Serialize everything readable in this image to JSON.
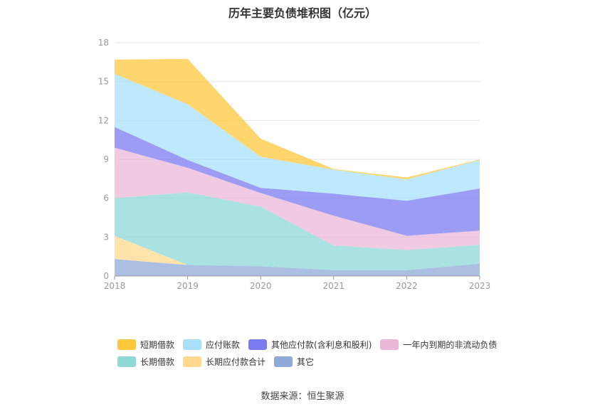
{
  "chart_data": {
    "type": "area",
    "stacked": true,
    "title": "历年主要负债堆积图（亿元）",
    "x": [
      "2018",
      "2019",
      "2020",
      "2021",
      "2022",
      "2023"
    ],
    "ylim": [
      0,
      18
    ],
    "yticks": [
      0,
      3,
      6,
      9,
      12,
      15,
      18
    ],
    "grid": true,
    "legend_position": "bottom",
    "series": [
      {
        "name": "其它",
        "color": "#8fa9d8",
        "values": [
          1.3,
          0.85,
          0.75,
          0.45,
          0.45,
          0.95
        ]
      },
      {
        "name": "长期应付款合计",
        "color": "#ffd98e",
        "values": [
          1.8,
          0.0,
          0.0,
          0.0,
          0.0,
          0.0
        ]
      },
      {
        "name": "长期借款",
        "color": "#8ed8d8",
        "values": [
          2.9,
          5.6,
          4.6,
          1.9,
          1.55,
          1.45
        ]
      },
      {
        "name": "一年内到期的非流动负债",
        "color": "#e9b8d8",
        "values": [
          3.9,
          1.9,
          1.05,
          2.3,
          1.1,
          1.1
        ]
      },
      {
        "name": "其他应付款(含利息和股利)",
        "color": "#7b7bf0",
        "values": [
          1.6,
          0.6,
          0.4,
          1.7,
          2.7,
          3.25
        ]
      },
      {
        "name": "应付账款",
        "color": "#a8e0fa",
        "values": [
          4.1,
          4.3,
          2.4,
          1.85,
          1.65,
          2.2
        ]
      },
      {
        "name": "短期借款",
        "color": "#ffc83c",
        "values": [
          1.1,
          3.5,
          1.4,
          0.05,
          0.15,
          0.05
        ]
      }
    ],
    "legend_order": [
      "短期借款",
      "应付账款",
      "其他应付款(含利息和股利)",
      "一年内到期的非流动负债",
      "长期借款",
      "长期应付款合计",
      "其它"
    ]
  },
  "footer": {
    "source": "数据来源：恒生聚源"
  }
}
